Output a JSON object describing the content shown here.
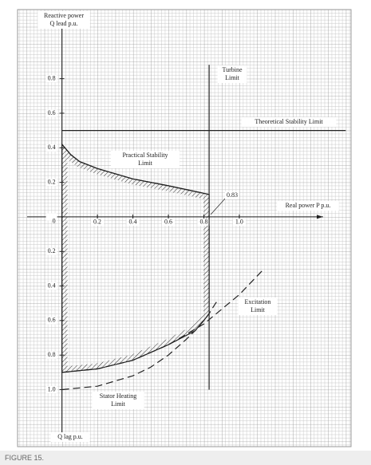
{
  "chart_data": {
    "type": "line",
    "ylabel": [
      "Reactive power",
      "Q lead p.u."
    ],
    "ylabel_bottom": "Q lag p.u.",
    "xlabel": "Real power P p.u.",
    "xlim": [
      -0.25,
      1.63
    ],
    "ylim": [
      -1.33,
      1.2
    ],
    "xticks": [
      0.2,
      0.4,
      0.6,
      0.8,
      {
        "value": 1,
        "label": "1.0"
      }
    ],
    "yticks": [
      0.8,
      0.6,
      0.4,
      0.2,
      0,
      {
        "value": -0.2,
        "label": "0.2"
      },
      {
        "value": -0.4,
        "label": "0.4"
      },
      {
        "value": -0.6,
        "label": "0.6"
      },
      {
        "value": -0.8,
        "label": "0.8"
      },
      {
        "value": -1,
        "label": "1.0"
      }
    ],
    "color": "#222222",
    "series": [
      {
        "dash": false,
        "x": [
          0,
          0.05,
          0.1,
          0.2,
          0.4,
          0.6,
          0.83
        ],
        "values": [
          0.42,
          0.36,
          0.32,
          0.28,
          0.22,
          0.18,
          0.13
        ]
      },
      {
        "dash": false,
        "x": [
          0,
          1.6
        ],
        "values": [
          0.5,
          0.5
        ]
      },
      {
        "dash": false,
        "x": [
          0.83,
          0.83
        ],
        "values": [
          0.88,
          -1.0
        ]
      },
      {
        "dash": true,
        "x": [
          0,
          0.2,
          0.4,
          0.5,
          0.6,
          0.7,
          0.75,
          0.8,
          0.83,
          0.86,
          0.88
        ],
        "values": [
          -1,
          -0.98,
          -0.92,
          -0.87,
          -0.8,
          -0.71,
          -0.66,
          -0.6,
          -0.56,
          -0.51,
          -0.48
        ]
      },
      {
        "dash": true,
        "x": [
          0,
          0.2,
          0.4,
          0.6,
          0.8,
          1.0,
          1.14
        ],
        "values": [
          -0.9,
          -0.88,
          -0.83,
          -0.74,
          -0.62,
          -0.45,
          -0.3
        ]
      }
    ],
    "annotations": [
      {
        "text": [
          "Turbine",
          "Limit"
        ]
      },
      {
        "text": [
          "Theoretical Stability Limit"
        ]
      },
      {
        "text": [
          "Practical Stability",
          "Limit"
        ]
      },
      {
        "text": [
          "Excitation",
          "Limit"
        ]
      },
      {
        "text": [
          "Stator Heating",
          "Limit"
        ]
      }
    ],
    "marker_label": 0.83
  },
  "caption": "FIGURE 15."
}
